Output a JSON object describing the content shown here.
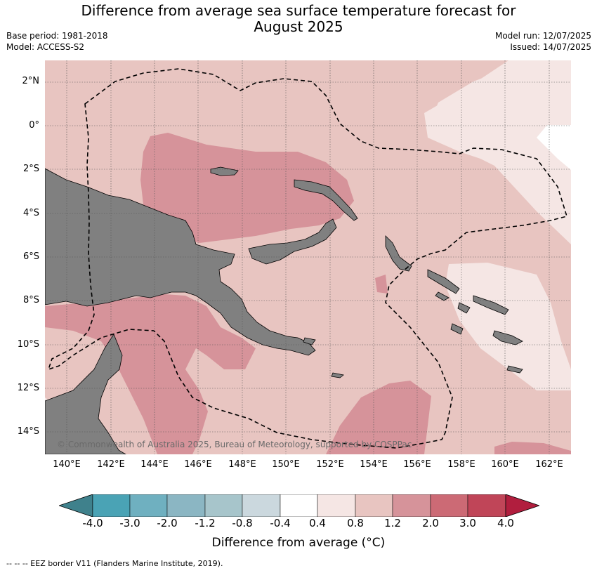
{
  "header": {
    "title_line1": "Difference from average sea surface temperature forecast for",
    "title_line2": "August 2025",
    "base_period": "Base period: 1981-2018",
    "model": "Model: ACCESS-S2",
    "model_run": "Model run: 12/07/2025",
    "issued": "Issued: 14/07/2025"
  },
  "map": {
    "latitude_labels": [
      "2°N",
      "0°",
      "2°S",
      "4°S",
      "6°S",
      "8°S",
      "10°S",
      "12°S",
      "14°S"
    ],
    "longitude_labels": [
      "140°E",
      "142°E",
      "144°E",
      "146°E",
      "148°E",
      "150°E",
      "152°E",
      "154°E",
      "156°E",
      "158°E",
      "160°E",
      "162°E"
    ],
    "copyright": "© Commonwealth of Australia 2025, Bureau of Meteorology, supported by COSPPac",
    "colors": {
      "land": "#808080",
      "anom_0_4_0_8": "#f5e6e4",
      "anom_0_8_1_2": "#e8c5c1",
      "anom_1_2_2_0": "#d6939a",
      "eez_line": "#000000"
    }
  },
  "colorbar": {
    "title": "Difference from average (°C)",
    "tick_labels": [
      "-4.0",
      "-3.0",
      "-2.0",
      "-1.2",
      "-0.8",
      "-0.4",
      "0.4",
      "0.8",
      "1.2",
      "2.0",
      "3.0",
      "4.0"
    ],
    "colors": [
      "#3f818c",
      "#4aa3b5",
      "#6fb0c0",
      "#8bb6c3",
      "#a7c5cb",
      "#cbd8de",
      "#ffffff",
      "#f5e6e4",
      "#e8c5c1",
      "#d6939a",
      "#cc6a75",
      "#c04558",
      "#b11e3e"
    ]
  },
  "footer": {
    "legend_text": "--  --  -- EEZ border V11 (Flanders Marine Institute, 2019)."
  }
}
